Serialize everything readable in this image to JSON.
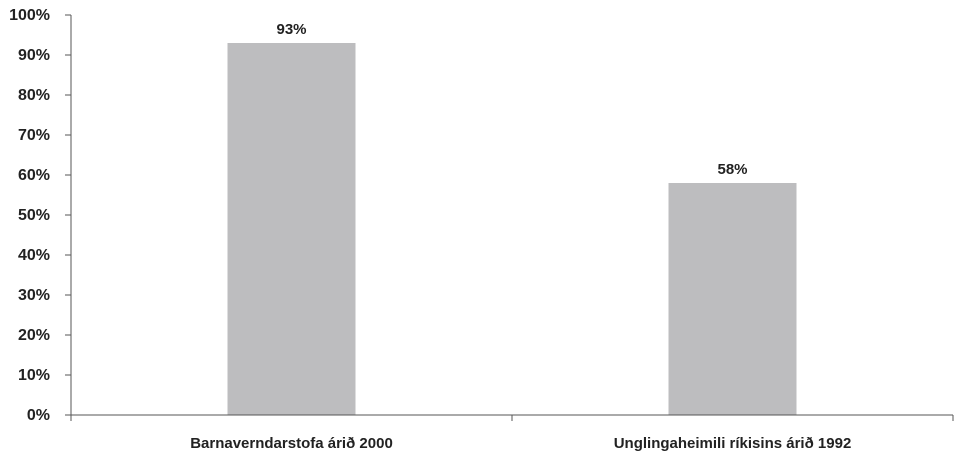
{
  "chart_data": {
    "type": "bar",
    "categories": [
      "Barnaverndarstofa árið 2000",
      "Unglingaheimili ríkisins árið 1992"
    ],
    "values": [
      93,
      58
    ],
    "value_labels": [
      "93%",
      "58%"
    ],
    "ylim": [
      0,
      100
    ],
    "yticks": [
      0,
      10,
      20,
      30,
      40,
      50,
      60,
      70,
      80,
      90,
      100
    ],
    "ytick_labels": [
      "0%",
      "10%",
      "20%",
      "30%",
      "40%",
      "50%",
      "60%",
      "70%",
      "80%",
      "90%",
      "100%"
    ],
    "grid": false,
    "bar_color": "#bdbdbf",
    "axis_color": "#555555"
  }
}
